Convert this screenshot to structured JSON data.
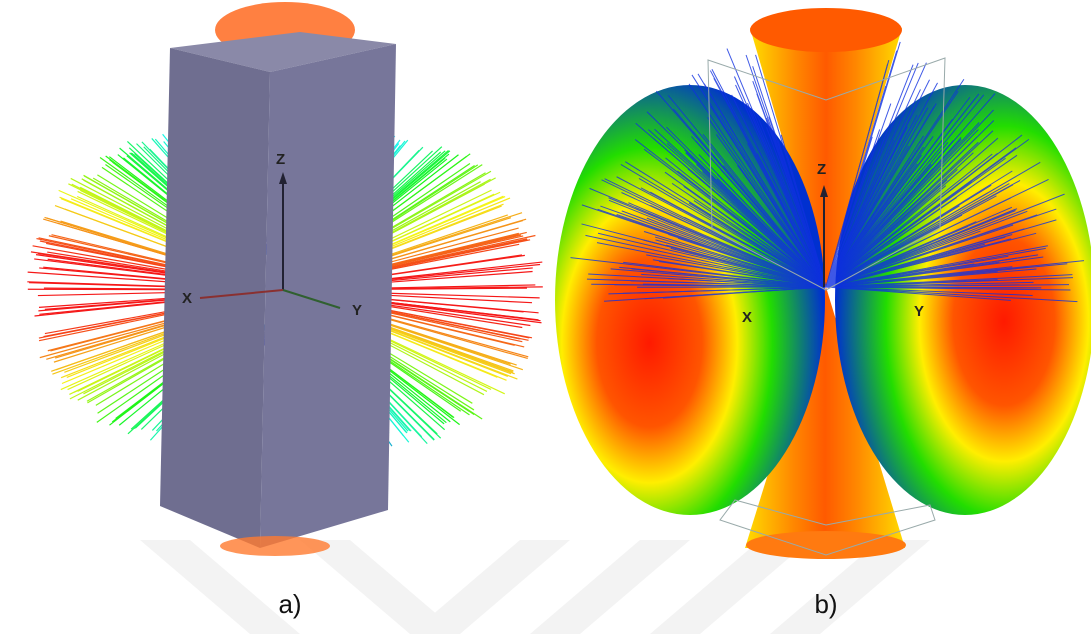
{
  "panels": [
    {
      "label": "a)",
      "axes": {
        "z": "Z",
        "x": "X",
        "y": "Y"
      }
    },
    {
      "label": "b)",
      "axes": {
        "z": "Z",
        "x": "X",
        "y": "Y"
      }
    }
  ]
}
